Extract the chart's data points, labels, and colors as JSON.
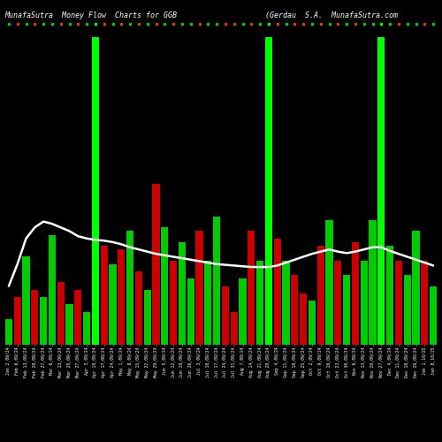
{
  "title": "MunafaSutra  Money Flow  Charts for GGB                    (Gerdau  S.A.  MunafaSutra.com",
  "background_color": "#000000",
  "figsize": [
    5.0,
    5.0
  ],
  "dpi": 100,
  "line_color": "#ffffff",
  "title_color": "#ffffff",
  "title_fontsize": 6,
  "tick_color": "#ffffff",
  "tick_fontsize": 3.5,
  "n_bars": 50,
  "bright_green_indices": [
    10,
    30,
    43
  ],
  "color_pattern": [
    "green",
    "red",
    "green",
    "red",
    "green",
    "green",
    "red",
    "green",
    "red",
    "green",
    "green",
    "red",
    "green",
    "red",
    "green",
    "red",
    "green",
    "red",
    "green",
    "red",
    "green",
    "green",
    "red",
    "green",
    "green",
    "red",
    "red",
    "green",
    "red",
    "green",
    "green",
    "red",
    "green",
    "red",
    "red",
    "green",
    "red",
    "green",
    "red",
    "green",
    "red",
    "green",
    "green",
    "red",
    "green",
    "red",
    "green",
    "green",
    "red",
    "green"
  ],
  "heights": [
    35,
    65,
    120,
    75,
    65,
    150,
    85,
    55,
    75,
    45,
    420,
    135,
    110,
    130,
    155,
    100,
    75,
    220,
    160,
    115,
    140,
    90,
    155,
    115,
    175,
    80,
    45,
    90,
    155,
    115,
    420,
    145,
    115,
    95,
    70,
    60,
    135,
    170,
    115,
    95,
    140,
    115,
    170,
    420,
    135,
    115,
    95,
    155,
    115,
    80
  ],
  "line_vals": [
    80,
    110,
    145,
    160,
    168,
    165,
    160,
    155,
    148,
    145,
    143,
    142,
    140,
    137,
    133,
    130,
    127,
    124,
    122,
    120,
    118,
    116,
    114,
    112,
    110,
    109,
    108,
    107,
    106,
    106,
    106,
    108,
    112,
    116,
    120,
    124,
    127,
    130,
    127,
    125,
    127,
    130,
    133,
    133,
    128,
    124,
    120,
    116,
    112,
    108
  ],
  "labels": [
    "Jan 2,09/24",
    "Feb 6,09/24",
    "Feb 13,09/24",
    "Feb 20,09/24",
    "Feb 27,09/24",
    "Mar 6,09/24",
    "Mar 13,09/24",
    "Mar 20,09/24",
    "Mar 27,09/24",
    "Apr 3,09/24",
    "Apr 10,09/24",
    "Apr 17,09/24",
    "Apr 24,09/24",
    "May 1,09/24",
    "May 8,09/24",
    "May 15,09/24",
    "May 22,09/24",
    "May 29,09/24",
    "Jun 5,09/24",
    "Jun 12,09/24",
    "Jun 19,09/24",
    "Jun 26,09/24",
    "Jul 3,09/24",
    "Jul 10,09/24",
    "Jul 17,09/24",
    "Jul 24,09/24",
    "Jul 31,09/24",
    "Aug 7,09/24",
    "Aug 14,09/24",
    "Aug 21,09/24",
    "Aug 28,09/24",
    "Sep 4,09/24",
    "Sep 11,09/24",
    "Sep 18,09/24",
    "Sep 25,09/24",
    "Oct 2,09/24",
    "Oct 9,09/24",
    "Oct 16,09/24",
    "Oct 23,09/24",
    "Oct 30,09/24",
    "Nov 6,09/24",
    "Nov 13,09/24",
    "Nov 20,09/24",
    "Nov 27,09/24",
    "Dec 4,09/24",
    "Dec 11,09/24",
    "Dec 18,09/24",
    "Dec 26,09/24",
    "Jan 1,10/25",
    "Jan 8,10/25"
  ]
}
